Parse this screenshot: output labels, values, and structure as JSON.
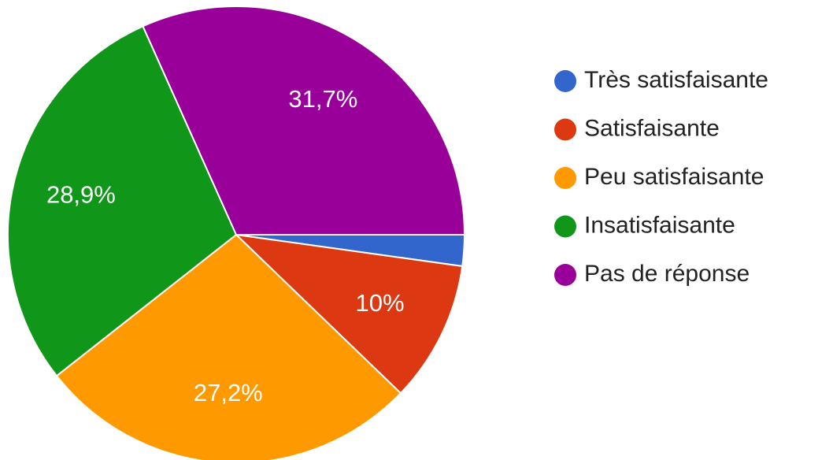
{
  "chart_data": {
    "type": "pie",
    "categories": [
      "Très satisfaisante",
      "Satisfaisante",
      "Peu satisfaisante",
      "Insatisfaisante",
      "Pas de réponse"
    ],
    "values": [
      2.2,
      10,
      27.2,
      28.9,
      31.7
    ],
    "value_labels": [
      null,
      "10%",
      "27,2%",
      "28,9%",
      "31,7%"
    ],
    "colors": [
      "#3366cc",
      "#dc3912",
      "#ff9900",
      "#109618",
      "#990099"
    ]
  }
}
